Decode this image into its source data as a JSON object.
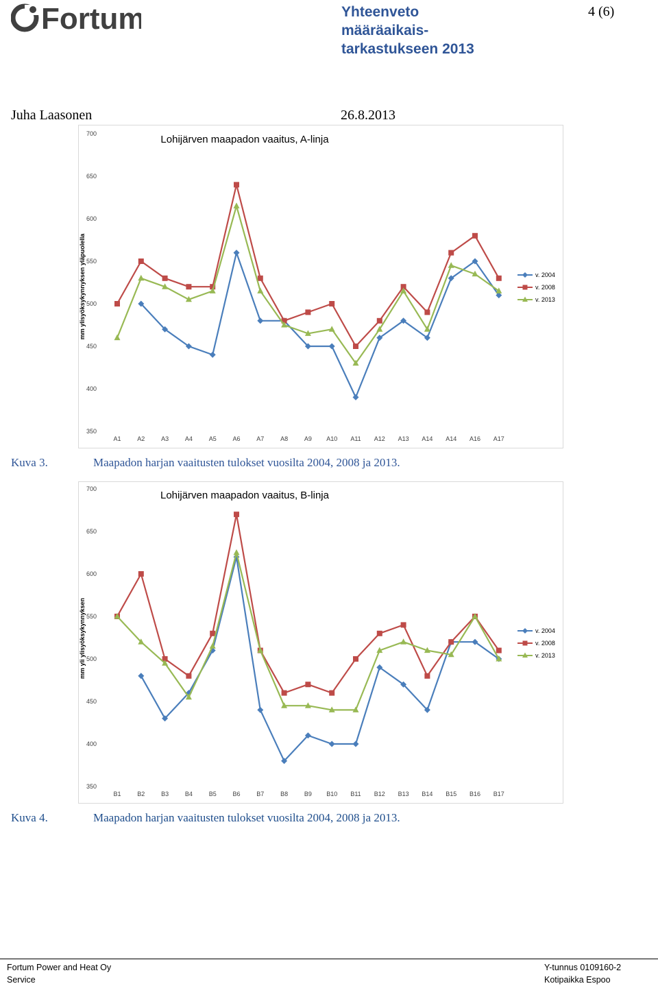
{
  "header": {
    "logo_text": "Fortum",
    "title_lines": [
      "Yhteenveto",
      "määräaikais-",
      "tarkastukseen 2013"
    ],
    "page_number": "4 (6)",
    "author": "Juha Laasonen",
    "date": "26.8.2013"
  },
  "colors": {
    "v2004": "#4a7ebb",
    "v2008": "#be4b48",
    "v2013": "#98b954",
    "caption": "#2f5597"
  },
  "captions": [
    {
      "label": "Kuva 3.",
      "text": "Maapadon harjan vaaitusten tulokset vuosilta 2004, 2008 ja 2013."
    },
    {
      "label": "Kuva 4.",
      "text": "Maapadon harjan vaaitusten tulokset vuosilta 2004, 2008 ja 2013."
    }
  ],
  "footer": {
    "company": "Fortum Power and Heat Oy",
    "unit": "Service",
    "business_id": "Y-tunnus 0109160-2",
    "address": "Kotipaikka Espoo"
  },
  "chart_data": [
    {
      "type": "line",
      "title": "Lohijärven maapadon vaaitus, A-linja",
      "ylabel": "mm ylisyöksykynnyksen yläpuolella",
      "xlabel": "",
      "ylim": [
        350,
        700
      ],
      "yticks": [
        350,
        400,
        450,
        500,
        550,
        600,
        650,
        700
      ],
      "categories": [
        "A1",
        "A2",
        "A3",
        "A4",
        "A5",
        "A6",
        "A7",
        "A8",
        "A9",
        "A10",
        "A11",
        "A12",
        "A13",
        "A14",
        "A14",
        "A16",
        "A17"
      ],
      "series": [
        {
          "name": "v. 2004",
          "marker": "diamond",
          "values": [
            null,
            500,
            470,
            450,
            440,
            560,
            480,
            480,
            450,
            450,
            390,
            460,
            480,
            460,
            530,
            550,
            510
          ]
        },
        {
          "name": "v. 2008",
          "marker": "square",
          "values": [
            500,
            550,
            530,
            520,
            520,
            640,
            530,
            480,
            490,
            500,
            450,
            480,
            520,
            490,
            560,
            580,
            530
          ]
        },
        {
          "name": "v. 2013",
          "marker": "triangle",
          "values": [
            460,
            530,
            520,
            505,
            515,
            615,
            515,
            475,
            465,
            470,
            430,
            470,
            515,
            470,
            545,
            535,
            515
          ]
        }
      ],
      "legend": "right"
    },
    {
      "type": "line",
      "title": "Lohijärven maapadon vaaitus, B-linja",
      "ylabel": "mm yli ylisyöksykynnyksen",
      "xlabel": "",
      "ylim": [
        350,
        700
      ],
      "yticks": [
        350,
        400,
        450,
        500,
        550,
        600,
        650,
        700
      ],
      "categories": [
        "B1",
        "B2",
        "B3",
        "B4",
        "B5",
        "B6",
        "B7",
        "B8",
        "B9",
        "B10",
        "B11",
        "B12",
        "B13",
        "B14",
        "B15",
        "B16",
        "B17"
      ],
      "series": [
        {
          "name": "v. 2004",
          "marker": "diamond",
          "values": [
            null,
            480,
            430,
            460,
            510,
            620,
            440,
            380,
            410,
            400,
            400,
            490,
            470,
            440,
            520,
            520,
            500
          ]
        },
        {
          "name": "v. 2008",
          "marker": "square",
          "values": [
            550,
            600,
            500,
            480,
            530,
            670,
            510,
            460,
            470,
            460,
            500,
            530,
            540,
            480,
            520,
            550,
            510
          ]
        },
        {
          "name": "v. 2013",
          "marker": "triangle",
          "values": [
            550,
            520,
            495,
            455,
            515,
            625,
            510,
            445,
            445,
            440,
            440,
            510,
            520,
            510,
            505,
            550,
            500
          ]
        }
      ],
      "legend": "right"
    }
  ]
}
